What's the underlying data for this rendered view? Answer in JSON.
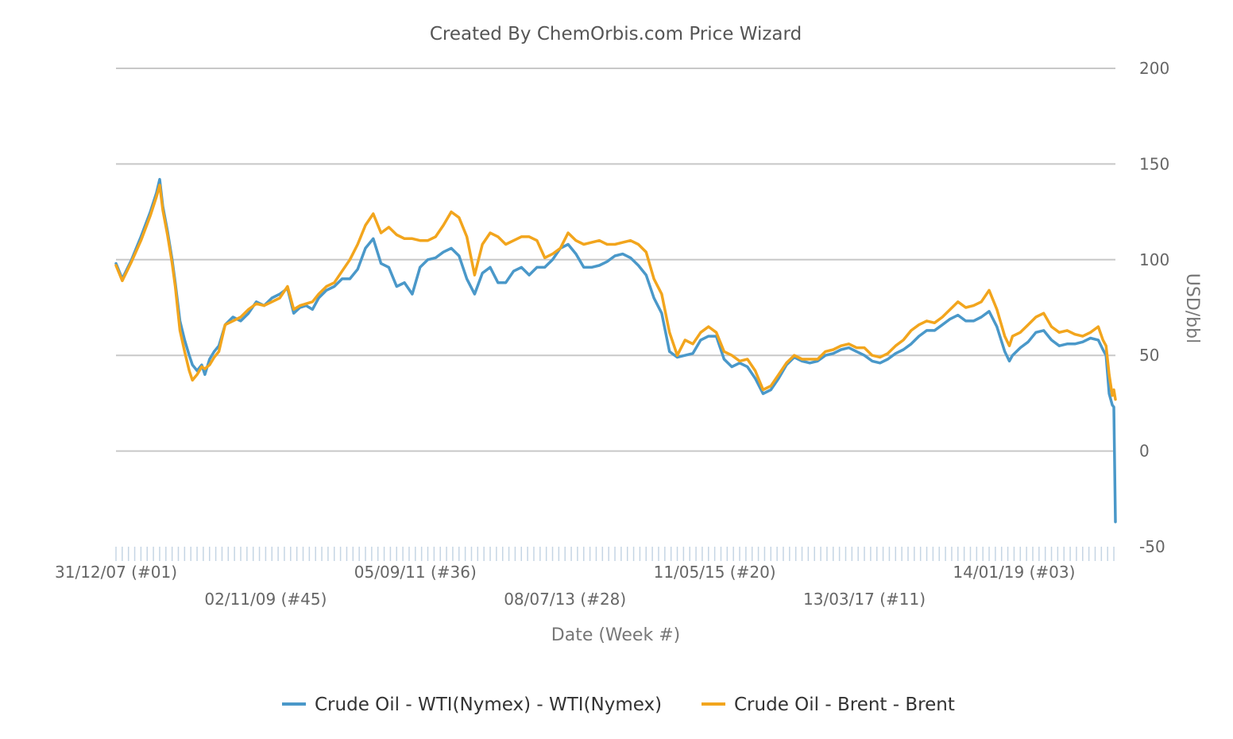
{
  "chart_data": {
    "type": "line",
    "title": "Created By ChemOrbis.com Price Wizard",
    "xlabel": "Date (Week #)",
    "ylabel": "USD/bbl",
    "ylim": [
      -50,
      200
    ],
    "yticks": [
      200,
      150,
      100,
      50,
      0,
      -50
    ],
    "grid": true,
    "legend_position": "bottom",
    "x_tick_labels": [
      {
        "label": "31/12/07 (#01)",
        "week": 0,
        "row": 0
      },
      {
        "label": "02/11/09 (#45)",
        "week": 96,
        "row": 1
      },
      {
        "label": "05/09/11 (#36)",
        "week": 192,
        "row": 0
      },
      {
        "label": "08/07/13 (#28)",
        "week": 288,
        "row": 1
      },
      {
        "label": "11/05/15 (#20)",
        "week": 384,
        "row": 0
      },
      {
        "label": "13/03/17 (#11)",
        "week": 480,
        "row": 1
      },
      {
        "label": "14/01/19 (#03)",
        "week": 576,
        "row": 0
      }
    ],
    "x_week_range": [
      0,
      641
    ],
    "series": [
      {
        "name": "Crude Oil - WTI(Nymex) - WTI(Nymex)",
        "color": "#4a98c9",
        "points": [
          [
            0,
            98
          ],
          [
            4,
            90
          ],
          [
            10,
            100
          ],
          [
            16,
            112
          ],
          [
            22,
            125
          ],
          [
            26,
            135
          ],
          [
            28,
            142
          ],
          [
            30,
            128
          ],
          [
            33,
            115
          ],
          [
            36,
            100
          ],
          [
            38,
            88
          ],
          [
            41,
            68
          ],
          [
            44,
            58
          ],
          [
            47,
            50
          ],
          [
            49,
            45
          ],
          [
            52,
            42
          ],
          [
            55,
            45
          ],
          [
            57,
            40
          ],
          [
            60,
            48
          ],
          [
            63,
            52
          ],
          [
            66,
            55
          ],
          [
            70,
            66
          ],
          [
            75,
            70
          ],
          [
            80,
            68
          ],
          [
            85,
            72
          ],
          [
            90,
            78
          ],
          [
            95,
            76
          ],
          [
            100,
            80
          ],
          [
            105,
            82
          ],
          [
            110,
            85
          ],
          [
            114,
            72
          ],
          [
            118,
            75
          ],
          [
            122,
            76
          ],
          [
            126,
            74
          ],
          [
            130,
            80
          ],
          [
            135,
            84
          ],
          [
            140,
            86
          ],
          [
            145,
            90
          ],
          [
            150,
            90
          ],
          [
            155,
            95
          ],
          [
            160,
            106
          ],
          [
            165,
            111
          ],
          [
            170,
            98
          ],
          [
            175,
            96
          ],
          [
            180,
            86
          ],
          [
            185,
            88
          ],
          [
            190,
            82
          ],
          [
            195,
            96
          ],
          [
            200,
            100
          ],
          [
            205,
            101
          ],
          [
            210,
            104
          ],
          [
            215,
            106
          ],
          [
            220,
            102
          ],
          [
            225,
            90
          ],
          [
            230,
            82
          ],
          [
            235,
            93
          ],
          [
            240,
            96
          ],
          [
            245,
            88
          ],
          [
            250,
            88
          ],
          [
            255,
            94
          ],
          [
            260,
            96
          ],
          [
            265,
            92
          ],
          [
            270,
            96
          ],
          [
            275,
            96
          ],
          [
            280,
            100
          ],
          [
            285,
            106
          ],
          [
            290,
            108
          ],
          [
            295,
            103
          ],
          [
            300,
            96
          ],
          [
            305,
            96
          ],
          [
            310,
            97
          ],
          [
            315,
            99
          ],
          [
            320,
            102
          ],
          [
            325,
            103
          ],
          [
            330,
            101
          ],
          [
            335,
            97
          ],
          [
            340,
            92
          ],
          [
            345,
            80
          ],
          [
            350,
            72
          ],
          [
            355,
            52
          ],
          [
            360,
            49
          ],
          [
            365,
            50
          ],
          [
            370,
            51
          ],
          [
            375,
            58
          ],
          [
            380,
            60
          ],
          [
            385,
            60
          ],
          [
            390,
            48
          ],
          [
            395,
            44
          ],
          [
            400,
            46
          ],
          [
            405,
            44
          ],
          [
            410,
            38
          ],
          [
            415,
            30
          ],
          [
            420,
            32
          ],
          [
            425,
            38
          ],
          [
            430,
            45
          ],
          [
            435,
            49
          ],
          [
            440,
            47
          ],
          [
            445,
            46
          ],
          [
            450,
            47
          ],
          [
            455,
            50
          ],
          [
            460,
            51
          ],
          [
            465,
            53
          ],
          [
            470,
            54
          ],
          [
            475,
            52
          ],
          [
            480,
            50
          ],
          [
            485,
            47
          ],
          [
            490,
            46
          ],
          [
            495,
            48
          ],
          [
            500,
            51
          ],
          [
            505,
            53
          ],
          [
            510,
            56
          ],
          [
            515,
            60
          ],
          [
            520,
            63
          ],
          [
            525,
            63
          ],
          [
            530,
            66
          ],
          [
            535,
            69
          ],
          [
            540,
            71
          ],
          [
            545,
            68
          ],
          [
            550,
            68
          ],
          [
            555,
            70
          ],
          [
            560,
            73
          ],
          [
            565,
            65
          ],
          [
            570,
            52
          ],
          [
            573,
            47
          ],
          [
            575,
            50
          ],
          [
            580,
            54
          ],
          [
            585,
            57
          ],
          [
            590,
            62
          ],
          [
            595,
            63
          ],
          [
            600,
            58
          ],
          [
            605,
            55
          ],
          [
            610,
            56
          ],
          [
            615,
            56
          ],
          [
            620,
            57
          ],
          [
            625,
            59
          ],
          [
            630,
            58
          ],
          [
            633,
            53
          ],
          [
            635,
            50
          ],
          [
            637,
            30
          ],
          [
            639,
            24
          ],
          [
            640,
            23
          ],
          [
            641,
            -37
          ]
        ]
      },
      {
        "name": "Crude Oil - Brent - Brent",
        "color": "#f2a51d",
        "points": [
          [
            0,
            97
          ],
          [
            4,
            89
          ],
          [
            10,
            99
          ],
          [
            16,
            110
          ],
          [
            22,
            123
          ],
          [
            26,
            133
          ],
          [
            28,
            139
          ],
          [
            30,
            126
          ],
          [
            33,
            113
          ],
          [
            36,
            98
          ],
          [
            38,
            86
          ],
          [
            41,
            63
          ],
          [
            44,
            52
          ],
          [
            47,
            42
          ],
          [
            49,
            37
          ],
          [
            52,
            40
          ],
          [
            55,
            44
          ],
          [
            57,
            43
          ],
          [
            60,
            45
          ],
          [
            63,
            49
          ],
          [
            66,
            52
          ],
          [
            70,
            66
          ],
          [
            75,
            68
          ],
          [
            80,
            70
          ],
          [
            85,
            74
          ],
          [
            90,
            77
          ],
          [
            95,
            76
          ],
          [
            100,
            78
          ],
          [
            105,
            80
          ],
          [
            110,
            86
          ],
          [
            114,
            74
          ],
          [
            118,
            76
          ],
          [
            122,
            77
          ],
          [
            126,
            78
          ],
          [
            130,
            82
          ],
          [
            135,
            86
          ],
          [
            140,
            88
          ],
          [
            145,
            94
          ],
          [
            150,
            100
          ],
          [
            155,
            108
          ],
          [
            160,
            118
          ],
          [
            165,
            124
          ],
          [
            170,
            114
          ],
          [
            175,
            117
          ],
          [
            180,
            113
          ],
          [
            185,
            111
          ],
          [
            190,
            111
          ],
          [
            195,
            110
          ],
          [
            200,
            110
          ],
          [
            205,
            112
          ],
          [
            210,
            118
          ],
          [
            215,
            125
          ],
          [
            220,
            122
          ],
          [
            225,
            112
          ],
          [
            230,
            92
          ],
          [
            235,
            108
          ],
          [
            240,
            114
          ],
          [
            245,
            112
          ],
          [
            250,
            108
          ],
          [
            255,
            110
          ],
          [
            260,
            112
          ],
          [
            265,
            112
          ],
          [
            270,
            110
          ],
          [
            275,
            101
          ],
          [
            280,
            103
          ],
          [
            285,
            106
          ],
          [
            290,
            114
          ],
          [
            295,
            110
          ],
          [
            300,
            108
          ],
          [
            305,
            109
          ],
          [
            310,
            110
          ],
          [
            315,
            108
          ],
          [
            320,
            108
          ],
          [
            325,
            109
          ],
          [
            330,
            110
          ],
          [
            335,
            108
          ],
          [
            340,
            104
          ],
          [
            345,
            90
          ],
          [
            350,
            82
          ],
          [
            355,
            62
          ],
          [
            360,
            50
          ],
          [
            365,
            58
          ],
          [
            370,
            56
          ],
          [
            375,
            62
          ],
          [
            380,
            65
          ],
          [
            385,
            62
          ],
          [
            390,
            52
          ],
          [
            395,
            50
          ],
          [
            400,
            47
          ],
          [
            405,
            48
          ],
          [
            410,
            42
          ],
          [
            415,
            32
          ],
          [
            420,
            34
          ],
          [
            425,
            40
          ],
          [
            430,
            46
          ],
          [
            435,
            50
          ],
          [
            440,
            48
          ],
          [
            445,
            48
          ],
          [
            450,
            48
          ],
          [
            455,
            52
          ],
          [
            460,
            53
          ],
          [
            465,
            55
          ],
          [
            470,
            56
          ],
          [
            475,
            54
          ],
          [
            480,
            54
          ],
          [
            485,
            50
          ],
          [
            490,
            49
          ],
          [
            495,
            51
          ],
          [
            500,
            55
          ],
          [
            505,
            58
          ],
          [
            510,
            63
          ],
          [
            515,
            66
          ],
          [
            520,
            68
          ],
          [
            525,
            67
          ],
          [
            530,
            70
          ],
          [
            535,
            74
          ],
          [
            540,
            78
          ],
          [
            545,
            75
          ],
          [
            550,
            76
          ],
          [
            555,
            78
          ],
          [
            560,
            84
          ],
          [
            565,
            74
          ],
          [
            570,
            60
          ],
          [
            573,
            55
          ],
          [
            575,
            60
          ],
          [
            580,
            62
          ],
          [
            585,
            66
          ],
          [
            590,
            70
          ],
          [
            595,
            72
          ],
          [
            600,
            65
          ],
          [
            605,
            62
          ],
          [
            610,
            63
          ],
          [
            615,
            61
          ],
          [
            620,
            60
          ],
          [
            625,
            62
          ],
          [
            630,
            65
          ],
          [
            633,
            58
          ],
          [
            635,
            55
          ],
          [
            637,
            40
          ],
          [
            639,
            29
          ],
          [
            640,
            32
          ],
          [
            641,
            27
          ]
        ]
      }
    ]
  }
}
